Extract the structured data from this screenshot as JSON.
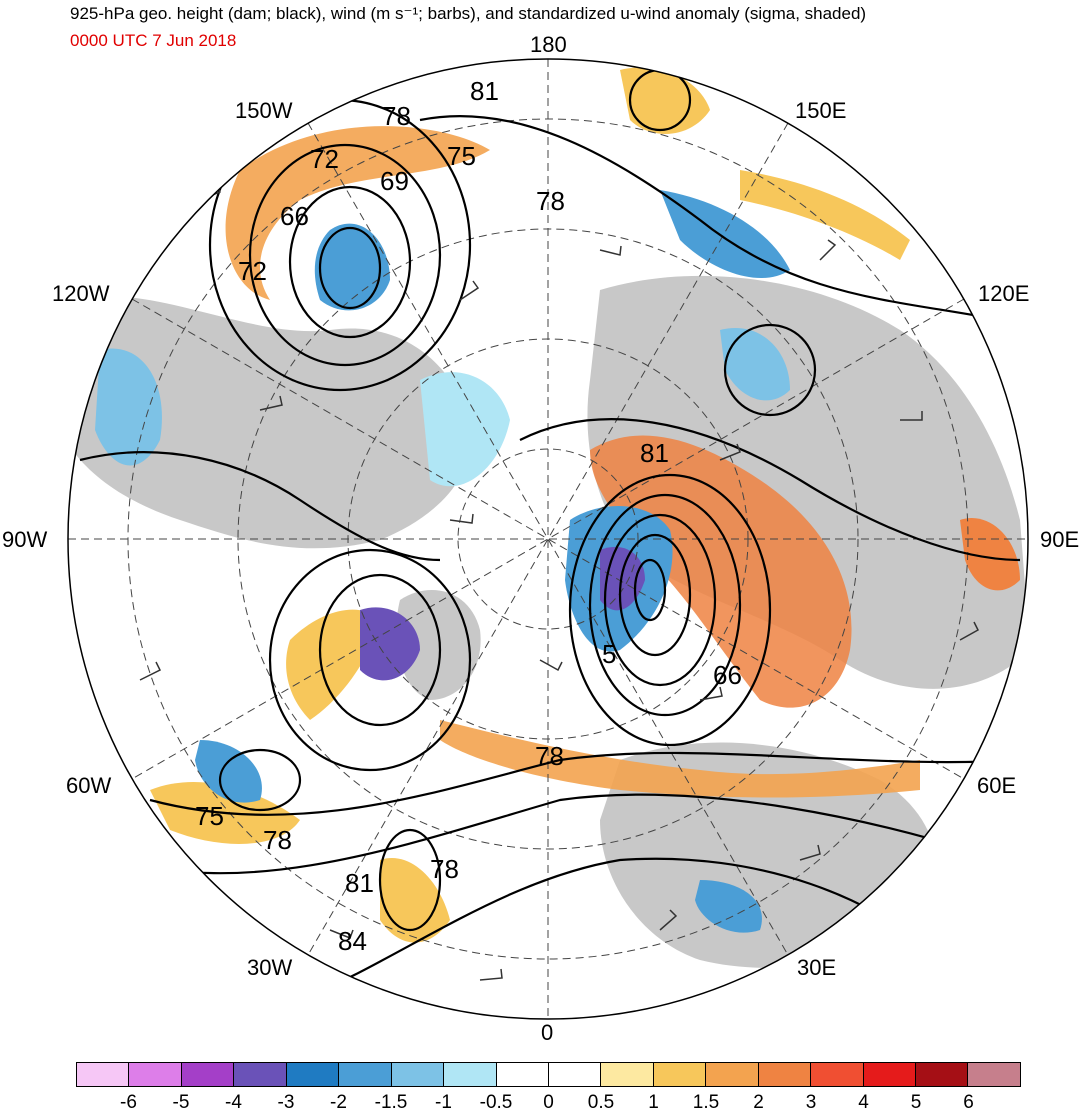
{
  "title": "925-hPa geo. height (dam; black), wind (m s⁻¹; barbs), and standardized u-wind anomaly (sigma, shaded)",
  "subtitle": "0000 UTC 7 Jun 2018",
  "longitude_labels": {
    "top": "180",
    "top_left": "150W",
    "top_right": "150E",
    "upper_left": "120W",
    "upper_right": "120E",
    "left": "90W",
    "right": "90E",
    "lower_left": "60W",
    "lower_right": "60E",
    "bottom_left": "30W",
    "bottom_right": "30E",
    "bottom": "0"
  },
  "contour_labels": [
    "81",
    "78",
    "75",
    "72",
    "69",
    "66",
    "72",
    "78",
    "81",
    "5",
    "66",
    "78",
    "75",
    "78",
    "81",
    "78",
    "84"
  ],
  "colorbar": {
    "colors": [
      "#f6c7f6",
      "#dd7ee9",
      "#a43fc8",
      "#6a52b8",
      "#1f7bc2",
      "#4b9ed6",
      "#7dc2e6",
      "#b0e6f5",
      "#ffffff",
      "#ffffff",
      "#fde9a1",
      "#f7c75b",
      "#f3a34f",
      "#ef8342",
      "#f04f32",
      "#e51b1b",
      "#a50f15",
      "#c67f8c"
    ],
    "tick_labels": [
      "-6",
      "-5",
      "-4",
      "-3",
      "-2",
      "-1.5",
      "-1",
      "-0.5",
      "0",
      "0.5",
      "1",
      "1.5",
      "2",
      "3",
      "4",
      "5",
      "6"
    ]
  },
  "colors": {
    "title": "#000000",
    "subtitle": "#e00000",
    "land": "#c8c8c8"
  }
}
